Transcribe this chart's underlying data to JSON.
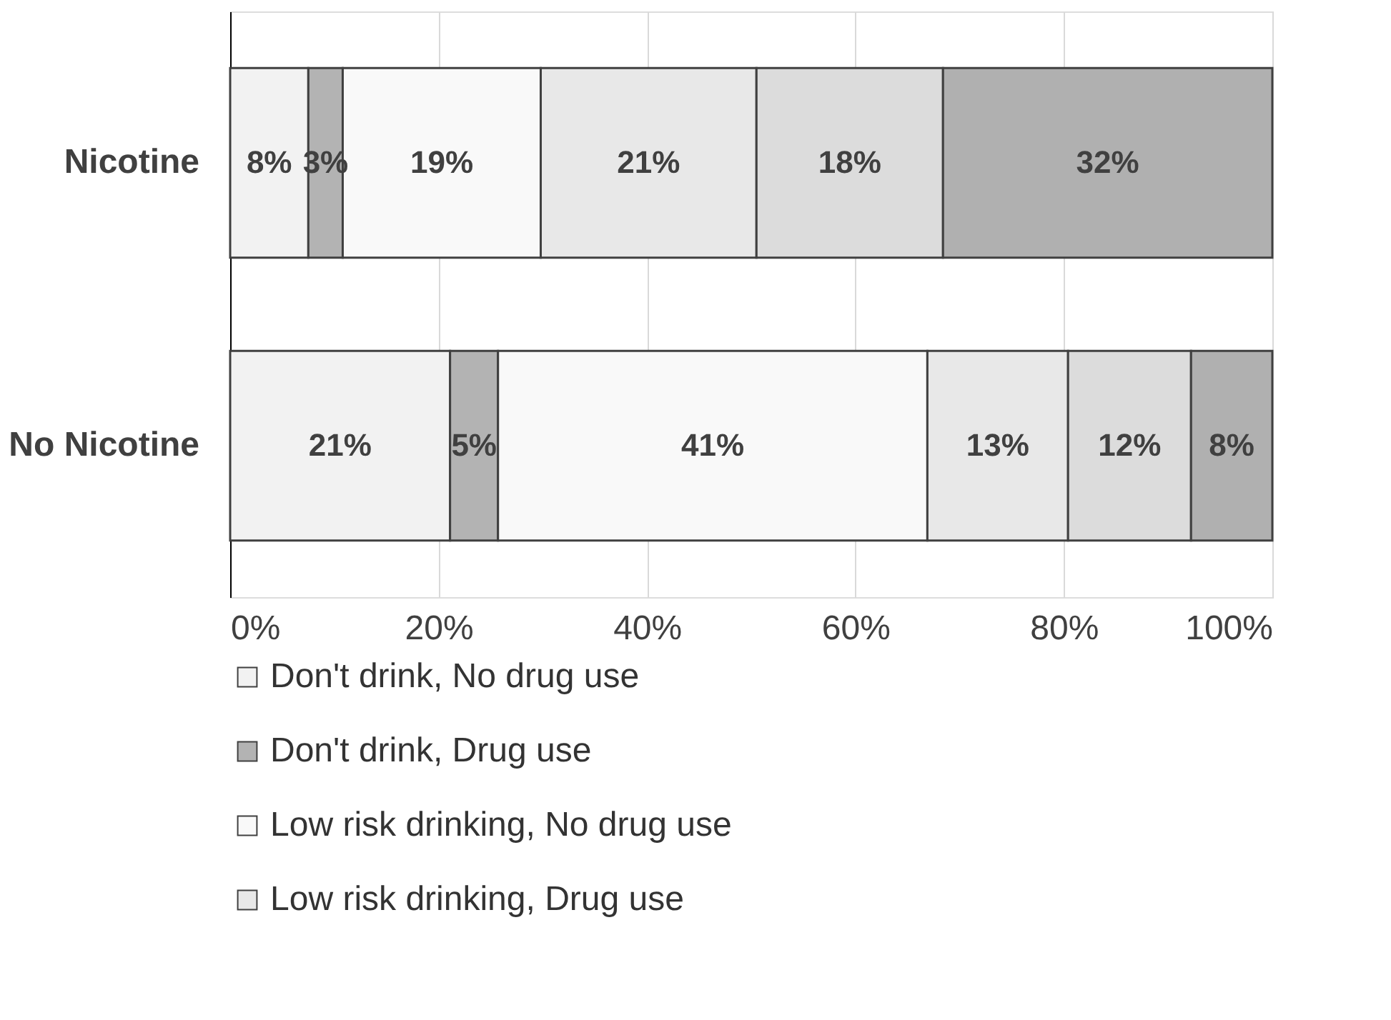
{
  "chart_data": {
    "type": "bar",
    "orientation": "horizontal",
    "stacked": true,
    "categories": [
      "Nicotine",
      "No Nicotine"
    ],
    "series": [
      {
        "name": "Don't drink, No drug use",
        "color": "#f2f2f2",
        "values": [
          7.5,
          21.1
        ],
        "value_labels": [
          "8%",
          "21%"
        ]
      },
      {
        "name": "Don't drink, Drug use",
        "color": "#b3b3b3",
        "values": [
          3.3,
          4.6
        ],
        "value_labels": [
          "3%",
          "5%"
        ]
      },
      {
        "name": "Low risk drinking, No drug use",
        "color": "#f9f9f9",
        "values": [
          19.0,
          41.2
        ],
        "value_labels": [
          "19%",
          "41%"
        ]
      },
      {
        "name": "Low risk drinking, Drug use",
        "color": "#e8e8e8",
        "values": [
          20.7,
          13.5
        ],
        "value_labels": [
          "21%",
          "13%"
        ]
      },
      {
        "color": "#dcdcdc",
        "values": [
          17.9,
          11.8
        ],
        "value_labels": [
          "18%",
          "12%"
        ]
      },
      {
        "color": "#b0b0b0",
        "values": [
          31.6,
          7.8
        ],
        "value_labels": [
          "32%",
          "8%"
        ]
      }
    ],
    "xlim": [
      0,
      100
    ],
    "xticks": [
      {
        "value": 0,
        "label": "0%"
      },
      {
        "value": 20,
        "label": "20%"
      },
      {
        "value": 40,
        "label": "40%"
      },
      {
        "value": 60,
        "label": "60%"
      },
      {
        "value": 80,
        "label": "80%"
      },
      {
        "value": 100,
        "label": "100%"
      }
    ],
    "grid": "x",
    "legend": "bottom"
  }
}
